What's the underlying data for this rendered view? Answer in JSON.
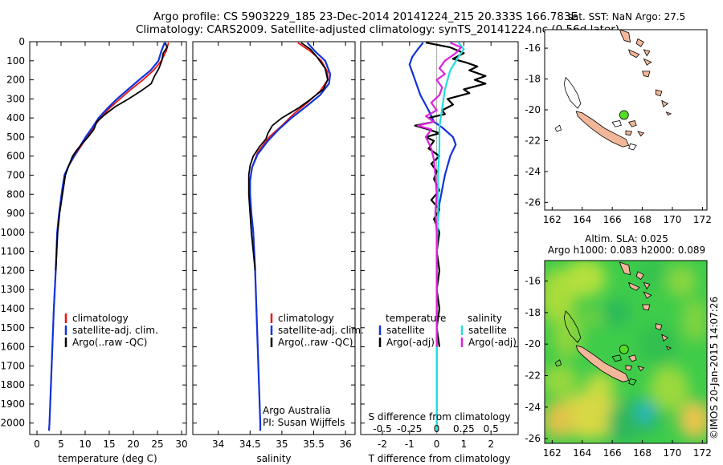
{
  "header": {
    "title1": "Argo profile: CS 5903229_185 23-Dec-2014 20141224_215 20.333S 166.783E",
    "title2": "Climatology: CARS2009. Satellite-adjusted climatology: synTS_20141224.nc (0.56d later)"
  },
  "colors": {
    "climatology": "#ee1111",
    "satellite": "#1133dd",
    "argo": "#000000",
    "s_satellite": "#22dddd",
    "s_argo": "#dd22dd",
    "land": "#f2b79a"
  },
  "depth_axis": {
    "ticks": [
      0,
      100,
      200,
      300,
      400,
      500,
      600,
      700,
      800,
      900,
      1000,
      1100,
      1200,
      1300,
      1400,
      1500,
      1600,
      1700,
      1800,
      1900,
      2000
    ],
    "ylim": [
      0,
      2060
    ]
  },
  "chart_data": [
    {
      "type": "line",
      "id": "temperature",
      "xlabel": "temperature (deg C)",
      "xlim": [
        -1.5,
        31
      ],
      "xticks": [
        0,
        5,
        10,
        15,
        20,
        25,
        30
      ],
      "legend": {
        "labels": [
          "climatology",
          "satellite-adj. clim.",
          "Argo(..raw -QC)"
        ]
      },
      "series": [
        {
          "name": "climatology",
          "points": [
            [
              27.3,
              5
            ],
            [
              26.8,
              50
            ],
            [
              25.8,
              100
            ],
            [
              24.2,
              150
            ],
            [
              22.0,
              200
            ],
            [
              19.5,
              250
            ],
            [
              17.2,
              300
            ],
            [
              15.0,
              350
            ],
            [
              13.2,
              400
            ],
            [
              11.7,
              450
            ],
            [
              10.4,
              500
            ],
            [
              9.1,
              550
            ],
            [
              7.8,
              600
            ],
            [
              6.6,
              650
            ],
            [
              5.8,
              700
            ],
            [
              5.2,
              800
            ],
            [
              4.6,
              900
            ],
            [
              4.2,
              1000
            ],
            [
              3.9,
              1200
            ],
            [
              3.5,
              1400
            ],
            [
              3.2,
              1600
            ],
            [
              2.9,
              1800
            ],
            [
              2.6,
              2000
            ],
            [
              2.5,
              2040
            ]
          ]
        },
        {
          "name": "satellite-adj. clim.",
          "points": [
            [
              26.5,
              5
            ],
            [
              25.8,
              50
            ],
            [
              25.2,
              100
            ],
            [
              23.6,
              150
            ],
            [
              21.2,
              200
            ],
            [
              18.9,
              250
            ],
            [
              16.6,
              300
            ],
            [
              14.6,
              350
            ],
            [
              12.8,
              400
            ],
            [
              11.5,
              450
            ],
            [
              10.1,
              500
            ],
            [
              8.9,
              550
            ],
            [
              7.7,
              600
            ],
            [
              6.6,
              650
            ],
            [
              5.7,
              700
            ],
            [
              5.1,
              800
            ],
            [
              4.6,
              900
            ],
            [
              4.2,
              1000
            ],
            [
              3.9,
              1200
            ],
            [
              3.5,
              1400
            ],
            [
              3.2,
              1600
            ],
            [
              2.9,
              1800
            ],
            [
              2.6,
              2000
            ],
            [
              2.5,
              2040
            ]
          ]
        },
        {
          "name": "Argo(..raw -QC)",
          "points": [
            [
              26.6,
              5
            ],
            [
              27.0,
              30
            ],
            [
              26.2,
              60
            ],
            [
              25.9,
              100
            ],
            [
              25.3,
              140
            ],
            [
              24.4,
              180
            ],
            [
              23.7,
              220
            ],
            [
              21.5,
              260
            ],
            [
              19.0,
              300
            ],
            [
              16.3,
              340
            ],
            [
              14.2,
              380
            ],
            [
              12.4,
              420
            ],
            [
              11.8,
              460
            ],
            [
              10.6,
              500
            ],
            [
              9.2,
              540
            ],
            [
              8.2,
              570
            ],
            [
              7.4,
              600
            ],
            [
              6.6,
              650
            ],
            [
              5.9,
              700
            ],
            [
              5.3,
              800
            ],
            [
              4.7,
              900
            ],
            [
              4.3,
              1000
            ],
            [
              3.9,
              1200
            ]
          ]
        }
      ]
    },
    {
      "type": "line",
      "id": "salinity",
      "xlabel": "salinity",
      "xlim": [
        33.6,
        36.15
      ],
      "xticks": [
        34,
        34.5,
        35,
        35.5,
        36
      ],
      "legend": {
        "labels": [
          "climatology",
          "satellite-adj. clim.",
          "Argo(..raw -QC)"
        ]
      },
      "notes": [
        "Argo Australia",
        "PI: Susan Wijffels"
      ],
      "series": [
        {
          "name": "climatology",
          "points": [
            [
              35.25,
              5
            ],
            [
              35.45,
              50
            ],
            [
              35.62,
              100
            ],
            [
              35.72,
              160
            ],
            [
              35.72,
              200
            ],
            [
              35.6,
              260
            ],
            [
              35.4,
              320
            ],
            [
              35.18,
              380
            ],
            [
              35.0,
              440
            ],
            [
              34.8,
              500
            ],
            [
              34.62,
              580
            ],
            [
              34.54,
              650
            ],
            [
              34.5,
              720
            ],
            [
              34.5,
              800
            ],
            [
              34.52,
              900
            ],
            [
              34.55,
              1000
            ],
            [
              34.58,
              1200
            ],
            [
              34.6,
              1400
            ],
            [
              34.62,
              1600
            ],
            [
              34.64,
              1800
            ],
            [
              34.66,
              2000
            ],
            [
              34.66,
              2040
            ]
          ]
        },
        {
          "name": "satellite-adj. clim.",
          "points": [
            [
              35.4,
              5
            ],
            [
              35.52,
              50
            ],
            [
              35.68,
              100
            ],
            [
              35.76,
              170
            ],
            [
              35.74,
              220
            ],
            [
              35.6,
              280
            ],
            [
              35.38,
              340
            ],
            [
              35.15,
              400
            ],
            [
              34.95,
              460
            ],
            [
              34.78,
              520
            ],
            [
              34.62,
              590
            ],
            [
              34.53,
              660
            ],
            [
              34.5,
              730
            ],
            [
              34.5,
              800
            ],
            [
              34.52,
              900
            ],
            [
              34.55,
              1000
            ],
            [
              34.58,
              1200
            ],
            [
              34.6,
              1400
            ],
            [
              34.62,
              1600
            ],
            [
              34.64,
              1800
            ],
            [
              34.66,
              2000
            ],
            [
              34.66,
              2040
            ]
          ]
        },
        {
          "name": "Argo(..raw -QC)",
          "points": [
            [
              35.3,
              5
            ],
            [
              35.45,
              40
            ],
            [
              35.55,
              80
            ],
            [
              35.68,
              140
            ],
            [
              35.72,
              200
            ],
            [
              35.65,
              250
            ],
            [
              35.42,
              310
            ],
            [
              35.25,
              350
            ],
            [
              35.0,
              400
            ],
            [
              34.85,
              440
            ],
            [
              34.78,
              480
            ],
            [
              34.75,
              510
            ],
            [
              34.65,
              550
            ],
            [
              34.55,
              600
            ],
            [
              34.5,
              650
            ],
            [
              34.48,
              700
            ],
            [
              34.48,
              800
            ],
            [
              34.5,
              900
            ],
            [
              34.52,
              1000
            ],
            [
              34.55,
              1100
            ],
            [
              34.58,
              1200
            ]
          ]
        }
      ]
    },
    {
      "type": "line",
      "id": "differences",
      "xlabel": "T difference from climatology",
      "xlim": [
        -2.8,
        3.0
      ],
      "xticks": [
        -2,
        -1,
        0,
        1,
        2
      ],
      "top_xlabel": "S difference from climatology",
      "top_xticks": [
        {
          "label": "-0.5",
          "x": -2
        },
        {
          "label": "-0.25",
          "x": -1
        },
        {
          "label": "0",
          "x": 0
        },
        {
          "label": "0.25",
          "x": 1
        },
        {
          "label": "0.5",
          "x": 2
        }
      ],
      "legend": {
        "left_title": "temperature",
        "right_title": "salinity",
        "labels": [
          "satellite",
          "Argo(-adj)",
          "satellite",
          "Argo(-adj)"
        ]
      },
      "series": [
        {
          "name": "temperature satellite",
          "points": [
            [
              -0.5,
              5
            ],
            [
              -0.7,
              40
            ],
            [
              -0.9,
              80
            ],
            [
              -1.0,
              120
            ],
            [
              -0.8,
              200
            ],
            [
              -0.6,
              280
            ],
            [
              -0.3,
              360
            ],
            [
              -0.1,
              420
            ],
            [
              0.2,
              450
            ],
            [
              0.6,
              500
            ],
            [
              0.7,
              540
            ],
            [
              0.5,
              600
            ],
            [
              0.3,
              700
            ],
            [
              0.1,
              850
            ],
            [
              0.0,
              1000
            ],
            [
              0.0,
              2040
            ]
          ]
        },
        {
          "name": "temperature Argo(-adj)",
          "points": [
            [
              -0.4,
              5
            ],
            [
              0.5,
              30
            ],
            [
              1.0,
              60
            ],
            [
              0.6,
              90
            ],
            [
              1.1,
              110
            ],
            [
              1.5,
              130
            ],
            [
              1.2,
              150
            ],
            [
              1.8,
              180
            ],
            [
              1.4,
              200
            ],
            [
              1.8,
              220
            ],
            [
              1.0,
              250
            ],
            [
              1.2,
              270
            ],
            [
              0.4,
              300
            ],
            [
              0.6,
              330
            ],
            [
              0.2,
              360
            ],
            [
              0.3,
              380
            ],
            [
              -0.3,
              400
            ],
            [
              -0.1,
              420
            ],
            [
              -0.8,
              440
            ],
            [
              -0.3,
              460
            ],
            [
              0.1,
              480
            ],
            [
              -0.4,
              500
            ],
            [
              -0.1,
              520
            ],
            [
              -0.3,
              560
            ],
            [
              0.1,
              600
            ],
            [
              -0.2,
              640
            ],
            [
              0.0,
              680
            ],
            [
              -0.1,
              720
            ],
            [
              0.1,
              780
            ],
            [
              -0.2,
              830
            ],
            [
              0.1,
              880
            ],
            [
              -0.1,
              930
            ],
            [
              0.1,
              1000
            ],
            [
              0.0,
              1100
            ],
            [
              0.1,
              1200
            ],
            [
              0.0,
              1300
            ],
            [
              0.1,
              1400
            ],
            [
              0.0,
              1500
            ],
            [
              0.1,
              1600
            ]
          ]
        },
        {
          "name": "salinity satellite",
          "points": [
            [
              0.8,
              5
            ],
            [
              1.0,
              40
            ],
            [
              0.8,
              80
            ],
            [
              0.5,
              150
            ],
            [
              0.3,
              250
            ],
            [
              0.2,
              350
            ],
            [
              0.1,
              450
            ],
            [
              0.1,
              550
            ],
            [
              0.05,
              700
            ],
            [
              0.05,
              900
            ],
            [
              0.0,
              1100
            ],
            [
              0.0,
              2040
            ]
          ]
        },
        {
          "name": "salinity Argo(-adj)",
          "points": [
            [
              0.5,
              5
            ],
            [
              0.9,
              30
            ],
            [
              0.7,
              60
            ],
            [
              0.3,
              100
            ],
            [
              0.1,
              140
            ],
            [
              0.3,
              170
            ],
            [
              0.0,
              200
            ],
            [
              0.2,
              240
            ],
            [
              0.1,
              280
            ],
            [
              -0.2,
              320
            ],
            [
              0.0,
              360
            ],
            [
              -0.4,
              390
            ],
            [
              -0.1,
              420
            ],
            [
              -0.7,
              440
            ],
            [
              -0.2,
              460
            ],
            [
              -0.4,
              500
            ],
            [
              -0.2,
              560
            ],
            [
              -0.1,
              620
            ],
            [
              -0.05,
              700
            ],
            [
              0.0,
              800
            ],
            [
              -0.05,
              900
            ],
            [
              0.0,
              1000
            ],
            [
              0.0,
              1200
            ],
            [
              0.0,
              1400
            ],
            [
              0.0,
              1600
            ]
          ]
        }
      ]
    },
    {
      "type": "scatter",
      "id": "map-sst",
      "title": "sat. SST: NaN Argo: 27.5",
      "xlim": [
        161.5,
        172.3
      ],
      "ylim": [
        -26.5,
        -14.8
      ],
      "xticks": [
        162,
        164,
        166,
        168,
        170,
        172
      ],
      "yticks": [
        -16,
        -18,
        -20,
        -22,
        -24,
        -26
      ],
      "marker": {
        "lon": 166.783,
        "lat": -20.333
      }
    },
    {
      "type": "heatmap",
      "id": "map-sla",
      "title1": "Altim. SLA: 0.025",
      "title2": "Argo h1000: 0.083 h2000: 0.089",
      "xlim": [
        161.5,
        172.3
      ],
      "ylim": [
        -26.3,
        -14.7
      ],
      "xticks": [
        162,
        164,
        166,
        168,
        170,
        172
      ],
      "yticks": [
        -16,
        -18,
        -20,
        -22,
        -24,
        -26
      ],
      "marker": {
        "lon": 166.783,
        "lat": -20.333
      }
    }
  ],
  "credit": "©IMOS 20-Jan-2015 14:07:26"
}
